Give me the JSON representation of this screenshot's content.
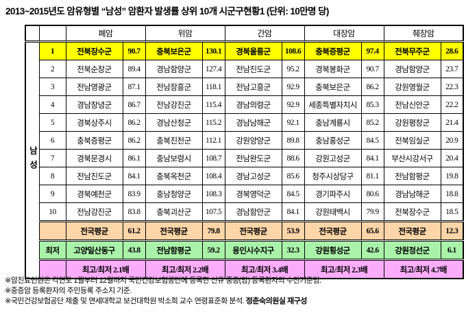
{
  "title": "2013~2015년도 암유형별 “남성” 암환자 발생률 상위 10개 시군구현황1 (단위: 10만명 당)",
  "table": {
    "group_label": "남성",
    "columns": [
      "폐암",
      "위암",
      "간암",
      "대장암",
      "췌장암"
    ],
    "rows": [
      {
        "rank": "1",
        "cells": [
          [
            "전북장수군",
            "90.7"
          ],
          [
            "충북보은군",
            "130.1"
          ],
          [
            "경북울릉군",
            "108.6"
          ],
          [
            "충북증평군",
            "97.4"
          ],
          [
            "전북무주군",
            "28.6"
          ]
        ]
      },
      {
        "rank": "2",
        "cells": [
          [
            "전북순창군",
            "89.4"
          ],
          [
            "경남함양군",
            "127.4"
          ],
          [
            "전남진도군",
            "95.2"
          ],
          [
            "경북봉화군",
            "90.7"
          ],
          [
            "경남함양군",
            "23.7"
          ]
        ]
      },
      {
        "rank": "3",
        "cells": [
          [
            "전남영광군",
            "87.1"
          ],
          [
            "전남장흥군",
            "118.1"
          ],
          [
            "전남고흥군",
            "92.9"
          ],
          [
            "충북보은군",
            "86.2"
          ],
          [
            "강원영월군",
            "22.3"
          ]
        ]
      },
      {
        "rank": "4",
        "cells": [
          [
            "경남창녕군",
            "86.7"
          ],
          [
            "전남강진군",
            "115.4"
          ],
          [
            "경남의령군",
            "92.9"
          ],
          [
            "세종특별자치시",
            "85.3"
          ],
          [
            "전남신안군",
            "22.2"
          ]
        ]
      },
      {
        "rank": "5",
        "cells": [
          [
            "경북상주시",
            "86.2"
          ],
          [
            "경남산청군",
            "115.2"
          ],
          [
            "경남남해군",
            "92.1"
          ],
          [
            "충남계룡시",
            "85.2"
          ],
          [
            "강원평창군",
            "21.4"
          ]
        ]
      },
      {
        "rank": "6",
        "cells": [
          [
            "충북증평군",
            "86.2"
          ],
          [
            "충북진천군",
            "112.1"
          ],
          [
            "강원양양군",
            "89.8"
          ],
          [
            "충남홍성군",
            "84.5"
          ],
          [
            "전북임실군",
            "20.9"
          ]
        ]
      },
      {
        "rank": "7",
        "cells": [
          [
            "경북문경시",
            "86.1"
          ],
          [
            "충남보령시",
            "108.7"
          ],
          [
            "전남완도군",
            "88.6"
          ],
          [
            "강원고성군",
            "84.1"
          ],
          [
            "부산시강서구",
            "20.4"
          ]
        ]
      },
      {
        "rank": "8",
        "cells": [
          [
            "전남진도군",
            "84.1"
          ],
          [
            "충북옥천군",
            "108.4"
          ],
          [
            "경남고성군",
            "85.6"
          ],
          [
            "청주시상당구",
            "81.1"
          ],
          [
            "전남함평군",
            "19.8"
          ]
        ]
      },
      {
        "rank": "9",
        "cells": [
          [
            "경북예천군",
            "83.9"
          ],
          [
            "충남청양군",
            "108.3"
          ],
          [
            "경북영덕군",
            "84.5"
          ],
          [
            "경기파주시",
            "80.6"
          ],
          [
            "경남남해군",
            "18.8"
          ]
        ]
      },
      {
        "rank": "10",
        "cells": [
          [
            "전남강진군",
            "83.8"
          ],
          [
            "충북괴산군",
            "107.5"
          ],
          [
            "경남함안군",
            "84.1"
          ],
          [
            "강원태백시",
            "79.9"
          ],
          [
            "전북장수군",
            "18.5"
          ]
        ]
      }
    ],
    "average_row": {
      "label": "",
      "cells": [
        [
          "전국평균",
          "61.2"
        ],
        [
          "전국평균",
          "79.8"
        ],
        [
          "전국평균",
          "53.9"
        ],
        [
          "전국평균",
          "65.6"
        ],
        [
          "전국평균",
          "12.3"
        ]
      ]
    },
    "lowest_row": {
      "label": "최저",
      "cells": [
        [
          "고양일산동구",
          "43.8"
        ],
        [
          "전남함평군",
          "59.2"
        ],
        [
          "용인시수지구",
          "32.3"
        ],
        [
          "강원횡성군",
          "42.6"
        ],
        [
          "강원정선군",
          "6.1"
        ]
      ]
    },
    "ratio_row": {
      "label": "",
      "cells": [
        "최고/최저 2.1배",
        "최고/최저 2.2배",
        "최고/최저 3.4배",
        "최고/최저 2.3배",
        "최고/최저 4.7배"
      ]
    }
  },
  "footnotes": [
    {
      "text": "※암진료인원은 각연도 1월부터 12월까지 국민건강보험공단에 등록한 신규 중증(암) 등록환자의 수진기준임.",
      "bold": ""
    },
    {
      "text": "※중증암 등록환자의 주민등록 주소지 기준.",
      "bold": ""
    },
    {
      "text": "※국민건강보험공단 제출 및 연세대학교 보건대학원 박소희 교수 연령표준화 분석. ",
      "bold": "정춘숙의원실 재구성"
    }
  ],
  "colors": {
    "rank1_highlight": "#FFFF00",
    "average_row": "#FCD5A8",
    "lowest_row": "#AAF2AA",
    "ratio_row": "#FBACFB"
  }
}
